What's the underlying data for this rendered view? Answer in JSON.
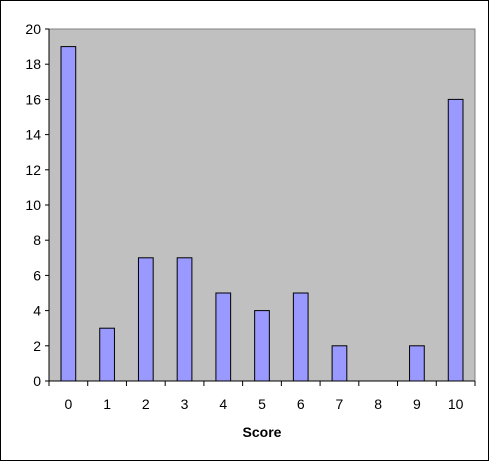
{
  "chart_data": {
    "type": "bar",
    "categories": [
      "0",
      "1",
      "2",
      "3",
      "4",
      "5",
      "6",
      "7",
      "8",
      "9",
      "10"
    ],
    "values": [
      19,
      3,
      7,
      7,
      5,
      4,
      5,
      2,
      0,
      2,
      16
    ],
    "title": "",
    "xlabel": "Score",
    "ylabel": "",
    "ylim": [
      0,
      20
    ],
    "yticks": [
      0,
      2,
      4,
      6,
      8,
      10,
      12,
      14,
      16,
      18,
      20
    ],
    "grid": false,
    "legend": "none",
    "colors": {
      "bar_fill": "#9999ff",
      "bar_stroke": "#000000",
      "plot_background": "#c0c0c0",
      "axis": "#000000"
    }
  }
}
